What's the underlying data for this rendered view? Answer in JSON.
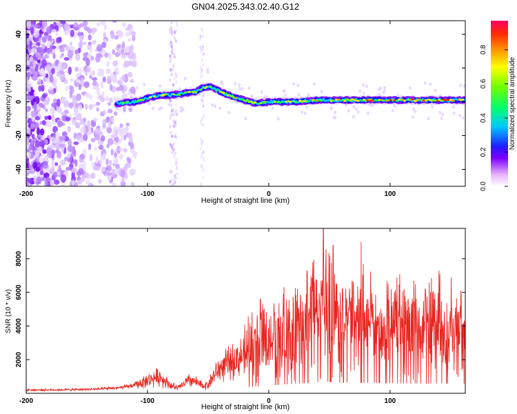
{
  "title": "GN04.2025.343.02.40.G12",
  "chart_data": [
    {
      "type": "heatmap",
      "name": "spectrogram",
      "xlabel": "Height of straight line (km)",
      "ylabel": "Frequency (Hz)",
      "xlim": [
        -200,
        162
      ],
      "ylim": [
        -50,
        48
      ],
      "xticks": [
        -200,
        -100,
        0,
        100
      ],
      "yticks": [
        -40,
        -20,
        0,
        20,
        40
      ],
      "colorbar": {
        "label": "Normalized spectral amplitude",
        "range": [
          0,
          0.97
        ],
        "ticks": [
          0.0,
          0.2,
          0.4,
          0.6,
          0.8
        ]
      },
      "ridge": {
        "description": "dominant frequency vs height",
        "x": [
          -125,
          -110,
          -100,
          -90,
          -80,
          -70,
          -60,
          -55,
          -50,
          -45,
          -40,
          -30,
          -20,
          -10,
          0,
          20,
          40,
          60,
          80,
          100,
          120,
          140,
          160
        ],
        "freq": [
          -1,
          0,
          2,
          4,
          4,
          5,
          6,
          8,
          9,
          8,
          6,
          3,
          1,
          -1,
          0,
          0,
          1,
          1,
          1,
          1,
          1,
          1,
          1
        ]
      }
    },
    {
      "type": "line",
      "name": "snr",
      "xlabel": "Height of straight line (km)",
      "ylabel": "SNR (10 * v/v)",
      "xlim": [
        -200,
        162
      ],
      "ylim": [
        0,
        9800
      ],
      "xticks": [
        -200,
        -100,
        0,
        100
      ],
      "yticks": [
        2000,
        4000,
        6000,
        8000
      ],
      "series": [
        {
          "name": "SNR",
          "color": "#e8251f",
          "x": [
            -200,
            -180,
            -160,
            -140,
            -120,
            -110,
            -100,
            -95,
            -90,
            -85,
            -80,
            -75,
            -70,
            -65,
            -60,
            -55,
            -50,
            -45,
            -40,
            -30,
            -20,
            -10,
            0,
            10,
            20,
            30,
            40,
            45,
            50,
            60,
            70,
            80,
            90,
            100,
            110,
            120,
            130,
            140,
            150,
            160
          ],
          "values": [
            200,
            200,
            220,
            250,
            350,
            500,
            750,
            900,
            1000,
            700,
            450,
            300,
            550,
            800,
            650,
            450,
            500,
            1100,
            1500,
            1900,
            2300,
            2700,
            3000,
            3400,
            3700,
            4000,
            4400,
            4700,
            4500,
            4300,
            4200,
            4100,
            4000,
            4000,
            3900,
            3900,
            3800,
            3900,
            3800,
            3800
          ]
        }
      ],
      "peaks": [
        {
          "x": 45,
          "value": 9800
        },
        {
          "x": 53,
          "value": 8800
        },
        {
          "x": 76,
          "value": 9000
        },
        {
          "x": -7,
          "value": 5600
        },
        {
          "x": 129,
          "value": 6200
        }
      ]
    }
  ]
}
